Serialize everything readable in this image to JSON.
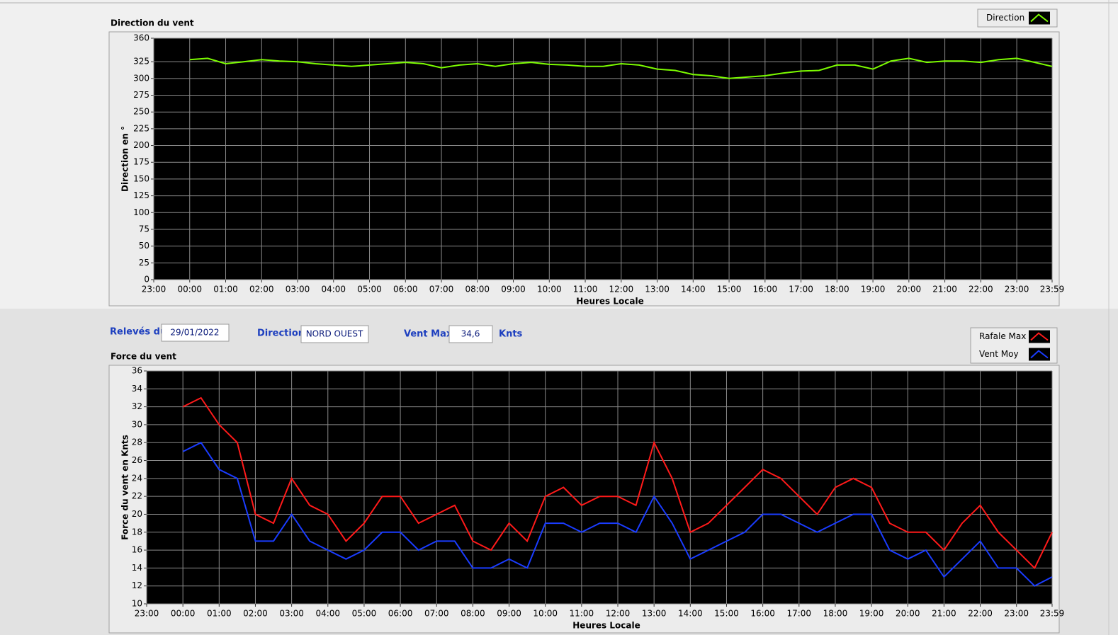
{
  "chart_data": [
    {
      "type": "line",
      "title": "Direction du vent",
      "ylabel": "Direction en °",
      "xlabel": "Heures Locale",
      "grid": true,
      "legend": "top-right",
      "xlim": [
        -1,
        23.983
      ],
      "xticks": [
        {
          "value": -1,
          "label": "23:00"
        },
        {
          "value": 0,
          "label": "00:00"
        },
        {
          "value": 1,
          "label": "01:00"
        },
        {
          "value": 2,
          "label": "02:00"
        },
        {
          "value": 3,
          "label": "03:00"
        },
        {
          "value": 4,
          "label": "04:00"
        },
        {
          "value": 5,
          "label": "05:00"
        },
        {
          "value": 6,
          "label": "06:00"
        },
        {
          "value": 7,
          "label": "07:00"
        },
        {
          "value": 8,
          "label": "08:00"
        },
        {
          "value": 9,
          "label": "09:00"
        },
        {
          "value": 10,
          "label": "10:00"
        },
        {
          "value": 11,
          "label": "11:00"
        },
        {
          "value": 12,
          "label": "12:00"
        },
        {
          "value": 13,
          "label": "13:00"
        },
        {
          "value": 14,
          "label": "14:00"
        },
        {
          "value": 15,
          "label": "15:00"
        },
        {
          "value": 16,
          "label": "16:00"
        },
        {
          "value": 17,
          "label": "17:00"
        },
        {
          "value": 18,
          "label": "18:00"
        },
        {
          "value": 19,
          "label": "19:00"
        },
        {
          "value": 20,
          "label": "20:00"
        },
        {
          "value": 21,
          "label": "21:00"
        },
        {
          "value": 22,
          "label": "22:00"
        },
        {
          "value": 23,
          "label": "23:00"
        },
        {
          "value": 23.983,
          "label": "23:59"
        }
      ],
      "ylim": [
        0,
        360
      ],
      "yticks": [
        0,
        25,
        50,
        75,
        100,
        125,
        150,
        175,
        200,
        225,
        250,
        275,
        300,
        325,
        360
      ],
      "x": [
        0,
        0.5,
        1,
        1.5,
        2,
        2.5,
        3,
        3.5,
        4,
        4.5,
        5,
        5.5,
        6,
        6.5,
        7,
        7.5,
        8,
        8.5,
        9,
        9.5,
        10,
        10.5,
        11,
        11.5,
        12,
        12.5,
        13,
        13.5,
        14,
        14.5,
        15,
        15.5,
        16,
        16.5,
        17,
        17.5,
        18,
        18.5,
        19,
        19.5,
        20,
        20.5,
        21,
        21.5,
        22,
        22.5,
        23,
        23.5,
        23.983
      ],
      "series": [
        {
          "name": "Direction",
          "color": "#7cfc00",
          "values": [
            328,
            330,
            322,
            325,
            328,
            326,
            325,
            322,
            320,
            318,
            320,
            322,
            324,
            322,
            316,
            320,
            322,
            318,
            322,
            324,
            321,
            320,
            318,
            318,
            322,
            320,
            314,
            312,
            306,
            304,
            300,
            302,
            304,
            308,
            311,
            312,
            320,
            320,
            314,
            326,
            330,
            324,
            326,
            326,
            324,
            328,
            330,
            324,
            318
          ]
        }
      ]
    },
    {
      "type": "line",
      "title": "Force du vent",
      "ylabel": "Force du vent en Knts",
      "xlabel": "Heures Locale",
      "grid": true,
      "legend": "top-right",
      "xlim": [
        -1,
        23.983
      ],
      "xticks": [
        {
          "value": -1,
          "label": "23:00"
        },
        {
          "value": 0,
          "label": "00:00"
        },
        {
          "value": 1,
          "label": "01:00"
        },
        {
          "value": 2,
          "label": "02:00"
        },
        {
          "value": 3,
          "label": "03:00"
        },
        {
          "value": 4,
          "label": "04:00"
        },
        {
          "value": 5,
          "label": "05:00"
        },
        {
          "value": 6,
          "label": "06:00"
        },
        {
          "value": 7,
          "label": "07:00"
        },
        {
          "value": 8,
          "label": "08:00"
        },
        {
          "value": 9,
          "label": "09:00"
        },
        {
          "value": 10,
          "label": "10:00"
        },
        {
          "value": 11,
          "label": "11:00"
        },
        {
          "value": 12,
          "label": "12:00"
        },
        {
          "value": 13,
          "label": "13:00"
        },
        {
          "value": 14,
          "label": "14:00"
        },
        {
          "value": 15,
          "label": "15:00"
        },
        {
          "value": 16,
          "label": "16:00"
        },
        {
          "value": 17,
          "label": "17:00"
        },
        {
          "value": 18,
          "label": "18:00"
        },
        {
          "value": 19,
          "label": "19:00"
        },
        {
          "value": 20,
          "label": "20:00"
        },
        {
          "value": 21,
          "label": "21:00"
        },
        {
          "value": 22,
          "label": "22:00"
        },
        {
          "value": 23,
          "label": "23:00"
        },
        {
          "value": 23.983,
          "label": "23:59"
        }
      ],
      "ylim": [
        10,
        36
      ],
      "yticks": [
        10,
        12,
        14,
        16,
        18,
        20,
        22,
        24,
        26,
        28,
        30,
        32,
        34,
        36
      ],
      "x": [
        0,
        0.5,
        1,
        1.5,
        2,
        2.5,
        3,
        3.5,
        4,
        4.5,
        5,
        5.5,
        6,
        6.5,
        7,
        7.5,
        8,
        8.5,
        9,
        9.5,
        10,
        10.5,
        11,
        11.5,
        12,
        12.5,
        13,
        13.5,
        14,
        14.5,
        15,
        15.5,
        16,
        16.5,
        17,
        17.5,
        18,
        18.5,
        19,
        19.5,
        20,
        20.5,
        21,
        21.5,
        22,
        22.5,
        23,
        23.5,
        23.983
      ],
      "series": [
        {
          "name": "Rafale Max",
          "color": "#ff1a1a",
          "values": [
            32,
            33,
            30,
            28,
            20,
            19,
            24,
            21,
            20,
            17,
            19,
            22,
            22,
            19,
            20,
            21,
            17,
            16,
            19,
            17,
            22,
            23,
            21,
            22,
            22,
            21,
            28,
            24,
            18,
            19,
            21,
            23,
            25,
            24,
            22,
            20,
            23,
            24,
            23,
            19,
            18,
            18,
            16,
            19,
            21,
            18,
            16,
            14,
            18
          ]
        },
        {
          "name": "Vent Moy",
          "color": "#1a3cff",
          "values": [
            27,
            28,
            25,
            24,
            17,
            17,
            20,
            17,
            16,
            15,
            16,
            18,
            18,
            16,
            17,
            17,
            14,
            14,
            15,
            14,
            19,
            19,
            18,
            19,
            19,
            18,
            22,
            19,
            15,
            16,
            17,
            18,
            20,
            20,
            19,
            18,
            19,
            20,
            20,
            16,
            15,
            16,
            13,
            15,
            17,
            14,
            14,
            12,
            13
          ]
        }
      ]
    }
  ],
  "controls": {
    "date_label": "Relevés du",
    "date_value": "29/01/2022",
    "direction_label": "Direction",
    "direction_value": "NORD OUEST",
    "max_label": "Vent Max",
    "max_value": "34,6",
    "max_unit": "Knts"
  }
}
